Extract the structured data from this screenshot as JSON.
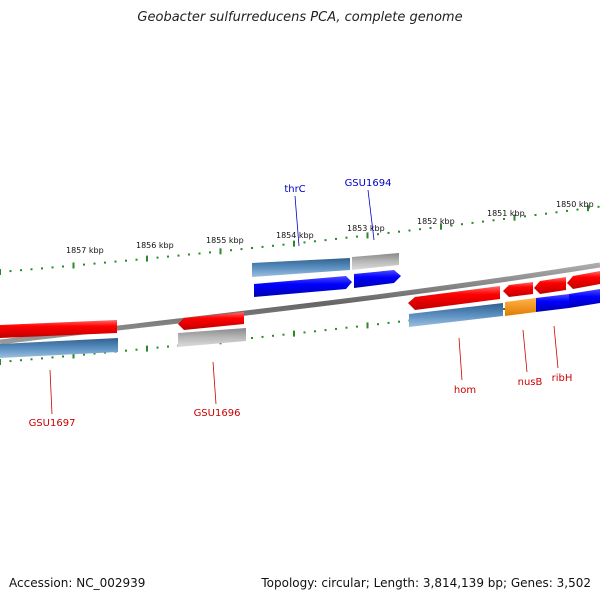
{
  "title": "Geobacter sulfurreducens PCA, complete genome",
  "footer": {
    "accession": "Accession: NC_002939",
    "topology": "Topology: circular; Length: 3,814,139 bp; Genes: 3,502"
  },
  "colors": {
    "forward_gene_label": "#0000cc",
    "reverse_gene_label": "#cc0000",
    "tick": "#2a8a2a",
    "backbone": "#808080"
  },
  "tick_labels": [
    "1857 kbp",
    "1856 kbp",
    "1855 kbp",
    "1854 kbp",
    "1853 kbp",
    "1852 kbp",
    "1851 kbp",
    "1850 kbp"
  ],
  "gene_labels": [
    "thrC",
    "GSU1694",
    "GSU1697",
    "GSU1696",
    "hom",
    "nusB",
    "ribH"
  ]
}
